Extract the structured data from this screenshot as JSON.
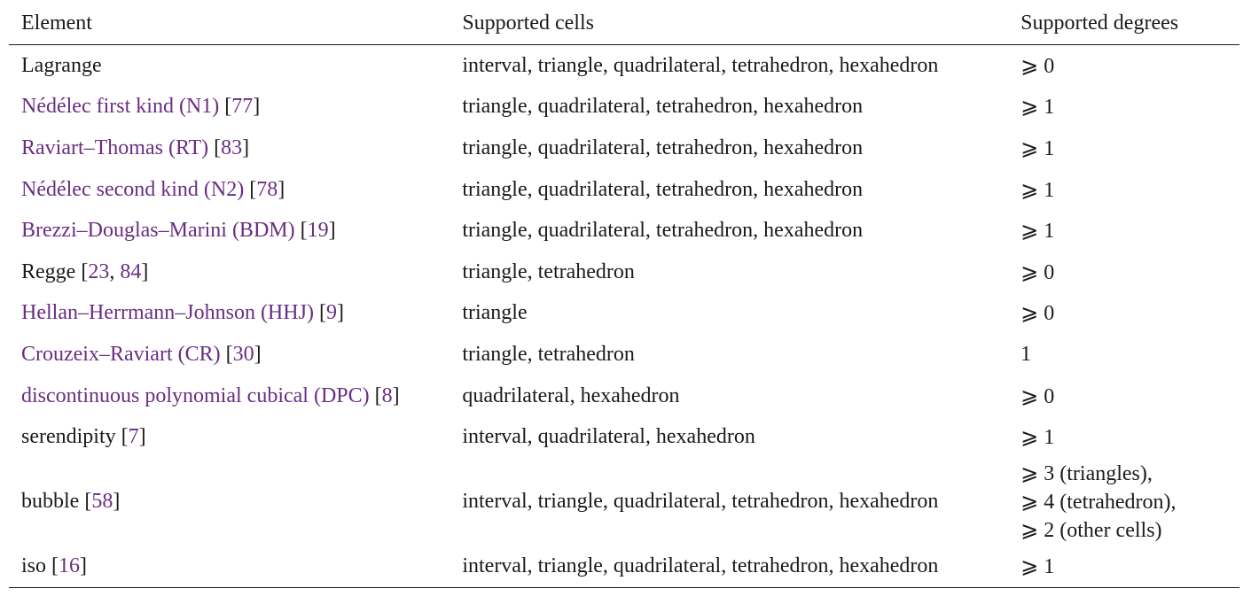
{
  "headers": {
    "element": "Element",
    "cells": "Supported cells",
    "degrees": "Supported degrees"
  },
  "rows": [
    {
      "name": "Lagrange",
      "linked": false,
      "cite_open": "",
      "refs": [],
      "cite_close": "",
      "cells": "interval, triangle, quadrilateral, tetrahedron, hexahedron",
      "degrees": [
        "⩾ 0"
      ]
    },
    {
      "name": "Nédélec first kind (N1)",
      "linked": true,
      "cite_open": "[",
      "refs": [
        "77"
      ],
      "cite_close": "]",
      "cells": "triangle, quadrilateral, tetrahedron, hexahedron",
      "degrees": [
        "⩾ 1"
      ]
    },
    {
      "name": "Raviart–Thomas (RT)",
      "linked": true,
      "cite_open": "[",
      "refs": [
        "83"
      ],
      "cite_close": "]",
      "cells": "triangle, quadrilateral, tetrahedron, hexahedron",
      "degrees": [
        "⩾ 1"
      ]
    },
    {
      "name": "Nédélec second kind (N2)",
      "linked": true,
      "cite_open": "[",
      "refs": [
        "78"
      ],
      "cite_close": "]",
      "cells": "triangle, quadrilateral, tetrahedron, hexahedron",
      "degrees": [
        "⩾ 1"
      ]
    },
    {
      "name": "Brezzi–Douglas–Marini (BDM)",
      "linked": true,
      "cite_open": "[",
      "refs": [
        "19"
      ],
      "cite_close": "]",
      "cells": "triangle, quadrilateral, tetrahedron, hexahedron",
      "degrees": [
        "⩾ 1"
      ]
    },
    {
      "name": "Regge",
      "linked": false,
      "cite_open": "[",
      "refs": [
        "23",
        "84"
      ],
      "cite_close": "]",
      "cells": "triangle, tetrahedron",
      "degrees": [
        "⩾ 0"
      ]
    },
    {
      "name": "Hellan–Herrmann–Johnson (HHJ)",
      "linked": true,
      "cite_open": "[",
      "refs": [
        "9"
      ],
      "cite_close": "]",
      "cells": "triangle",
      "degrees": [
        "⩾ 0"
      ]
    },
    {
      "name": "Crouzeix–Raviart (CR)",
      "linked": true,
      "cite_open": "[",
      "refs": [
        "30"
      ],
      "cite_close": "]",
      "cells": "triangle, tetrahedron",
      "degrees": [
        "1"
      ]
    },
    {
      "name": "discontinuous polynomial cubical (DPC)",
      "linked": true,
      "cite_open": "[",
      "refs": [
        "8"
      ],
      "cite_close": "]",
      "cells": "quadrilateral, hexahedron",
      "degrees": [
        "⩾ 0"
      ]
    },
    {
      "name": "serendipity",
      "linked": false,
      "cite_open": "[",
      "refs": [
        "7"
      ],
      "cite_close": "]",
      "cells": "interval, quadrilateral, hexahedron",
      "degrees": [
        "⩾ 1"
      ]
    },
    {
      "name": "bubble",
      "linked": false,
      "cite_open": "[",
      "refs": [
        "58"
      ],
      "cite_close": "]",
      "cells": "interval, triangle, quadrilateral, tetrahedron, hexahedron",
      "degrees": [
        "⩾ 3 (triangles),",
        "⩾ 4 (tetrahedron),",
        "⩾ 2 (other cells)"
      ]
    },
    {
      "name": "iso",
      "linked": false,
      "cite_open": "[",
      "refs": [
        "16"
      ],
      "cite_close": "]",
      "cells": "interval, triangle, quadrilateral, tetrahedron, hexahedron",
      "degrees": [
        "⩾ 1"
      ]
    }
  ],
  "colors": {
    "link": "#6a2d82",
    "text": "#1a1a1a"
  }
}
